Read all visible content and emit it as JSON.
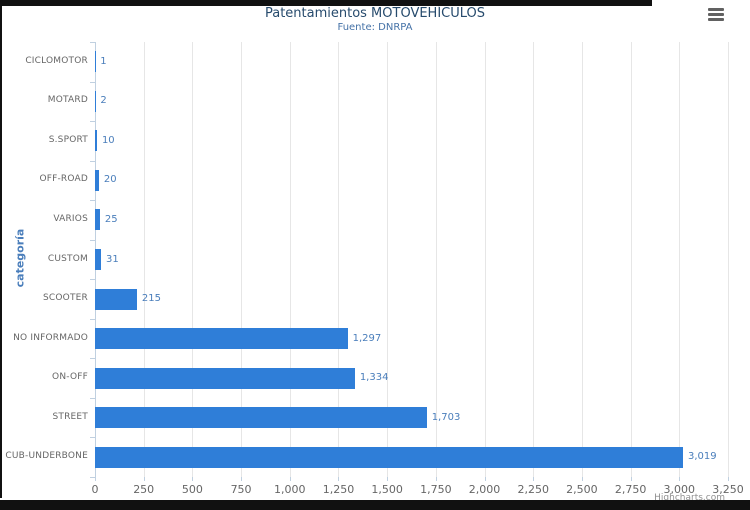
{
  "chart_data": {
    "type": "bar",
    "orientation": "horizontal",
    "title": "Patentamientos MOTOVEHÍCULOS",
    "subtitle": "Fuente: DNRPA",
    "ylabel": "categoría",
    "xlabel": "",
    "categories": [
      "CICLOMOTOR",
      "MOTARD",
      "S.SPORT",
      "OFF-ROAD",
      "VARIOS",
      "CUSTOM",
      "SCOOTER",
      "NO INFORMADO",
      "ON-OFF",
      "STREET",
      "CUB-UNDERBONE"
    ],
    "values": [
      1,
      2,
      10,
      20,
      25,
      31,
      215,
      1297,
      1334,
      1703,
      3019
    ],
    "value_labels": [
      "1",
      "2",
      "10",
      "20",
      "25",
      "31",
      "215",
      "1,297",
      "1,334",
      "1,703",
      "3,019"
    ],
    "xlim": [
      0,
      3250
    ],
    "x_tick_step": 250,
    "x_tick_labels": [
      "0",
      "250",
      "500",
      "750",
      "1,000",
      "1,250",
      "1,500",
      "1,750",
      "2,000",
      "2,250",
      "2,500",
      "2,750",
      "3,000",
      "3,250"
    ],
    "grid": true,
    "legend": "none",
    "credits": "Highcharts.com"
  },
  "colors": {
    "bar": "#2f7ed8",
    "title": "#274b6d",
    "subtitle": "#4572a7",
    "axis_title": "#4a7ebb",
    "value_label": "#4a7ebb",
    "category_label": "#666666",
    "x_tick_label": "#666666",
    "gridline": "#e6e6e6",
    "axis_line": "#c0d0e0",
    "menu_icon": "#616161",
    "credits": "#909090",
    "edge_bars": "#111111"
  },
  "menu": {
    "icon": "hamburger-menu-icon"
  }
}
